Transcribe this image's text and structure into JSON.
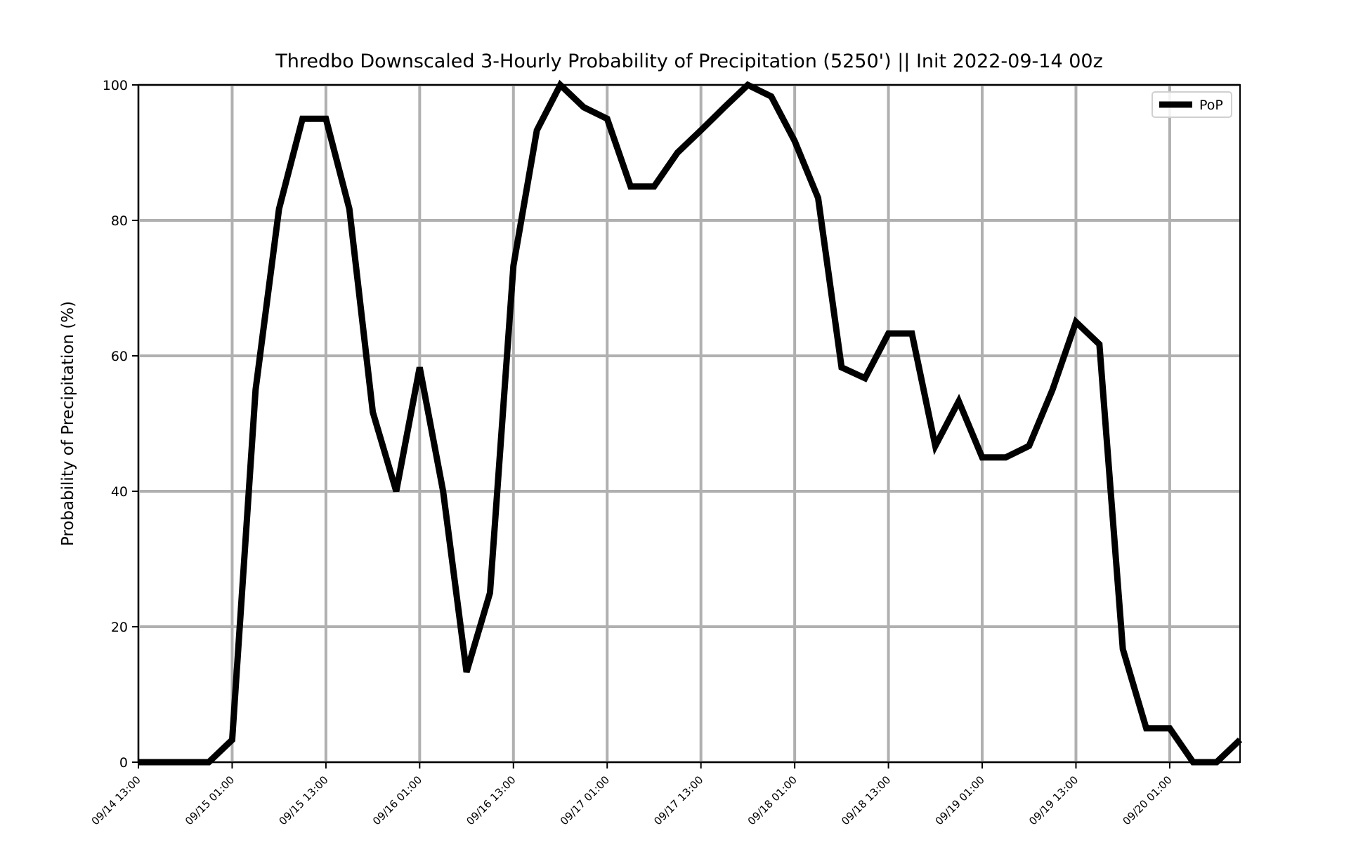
{
  "chart_data": {
    "type": "line",
    "title": "Thredbo Downscaled 3-Hourly Probability of Precipitation (5250') || Init 2022-09-14 00z",
    "xlabel": "",
    "ylabel": "Probability of Precipitation (%)",
    "ylim": [
      0,
      100
    ],
    "xlim": [
      "09/14 13:00",
      "09/20 10:00"
    ],
    "yticks": [
      0,
      20,
      40,
      60,
      80,
      100
    ],
    "xtick_labels": [
      "09/14 13:00",
      "09/15 01:00",
      "09/15 13:00",
      "09/16 01:00",
      "09/16 13:00",
      "09/17 01:00",
      "09/17 13:00",
      "09/18 01:00",
      "09/18 13:00",
      "09/19 01:00",
      "09/19 13:00",
      "09/20 01:00"
    ],
    "grid": true,
    "legend_position": "top-right",
    "series": [
      {
        "name": "PoP",
        "color": "#000000",
        "x": [
          "09/14 13:00",
          "09/14 16:00",
          "09/14 19:00",
          "09/14 22:00",
          "09/15 01:00",
          "09/15 04:00",
          "09/15 07:00",
          "09/15 10:00",
          "09/15 13:00",
          "09/15 16:00",
          "09/15 19:00",
          "09/15 22:00",
          "09/16 01:00",
          "09/16 04:00",
          "09/16 07:00",
          "09/16 10:00",
          "09/16 13:00",
          "09/16 16:00",
          "09/16 19:00",
          "09/16 22:00",
          "09/17 01:00",
          "09/17 04:00",
          "09/17 07:00",
          "09/17 10:00",
          "09/17 13:00",
          "09/17 16:00",
          "09/17 19:00",
          "09/17 22:00",
          "09/18 01:00",
          "09/18 04:00",
          "09/18 07:00",
          "09/18 10:00",
          "09/18 13:00",
          "09/18 16:00",
          "09/18 19:00",
          "09/18 22:00",
          "09/19 01:00",
          "09/19 04:00",
          "09/19 07:00",
          "09/19 10:00",
          "09/19 13:00",
          "09/19 16:00",
          "09/19 19:00",
          "09/19 22:00",
          "09/20 01:00",
          "09/20 04:00",
          "09/20 07:00",
          "09/20 10:00"
        ],
        "values": [
          0,
          0,
          0,
          0,
          3.3,
          55,
          81.7,
          95,
          95,
          81.7,
          51.7,
          40,
          58.3,
          40,
          13.3,
          25,
          73.3,
          93.3,
          100,
          96.7,
          95,
          85,
          85,
          90,
          93.3,
          96.7,
          100,
          98.3,
          91.7,
          83.3,
          58.3,
          56.7,
          63.3,
          63.3,
          46.7,
          53.3,
          45,
          45,
          46.7,
          55,
          65,
          61.7,
          16.7,
          5,
          5,
          0,
          0,
          3.3
        ]
      }
    ]
  }
}
